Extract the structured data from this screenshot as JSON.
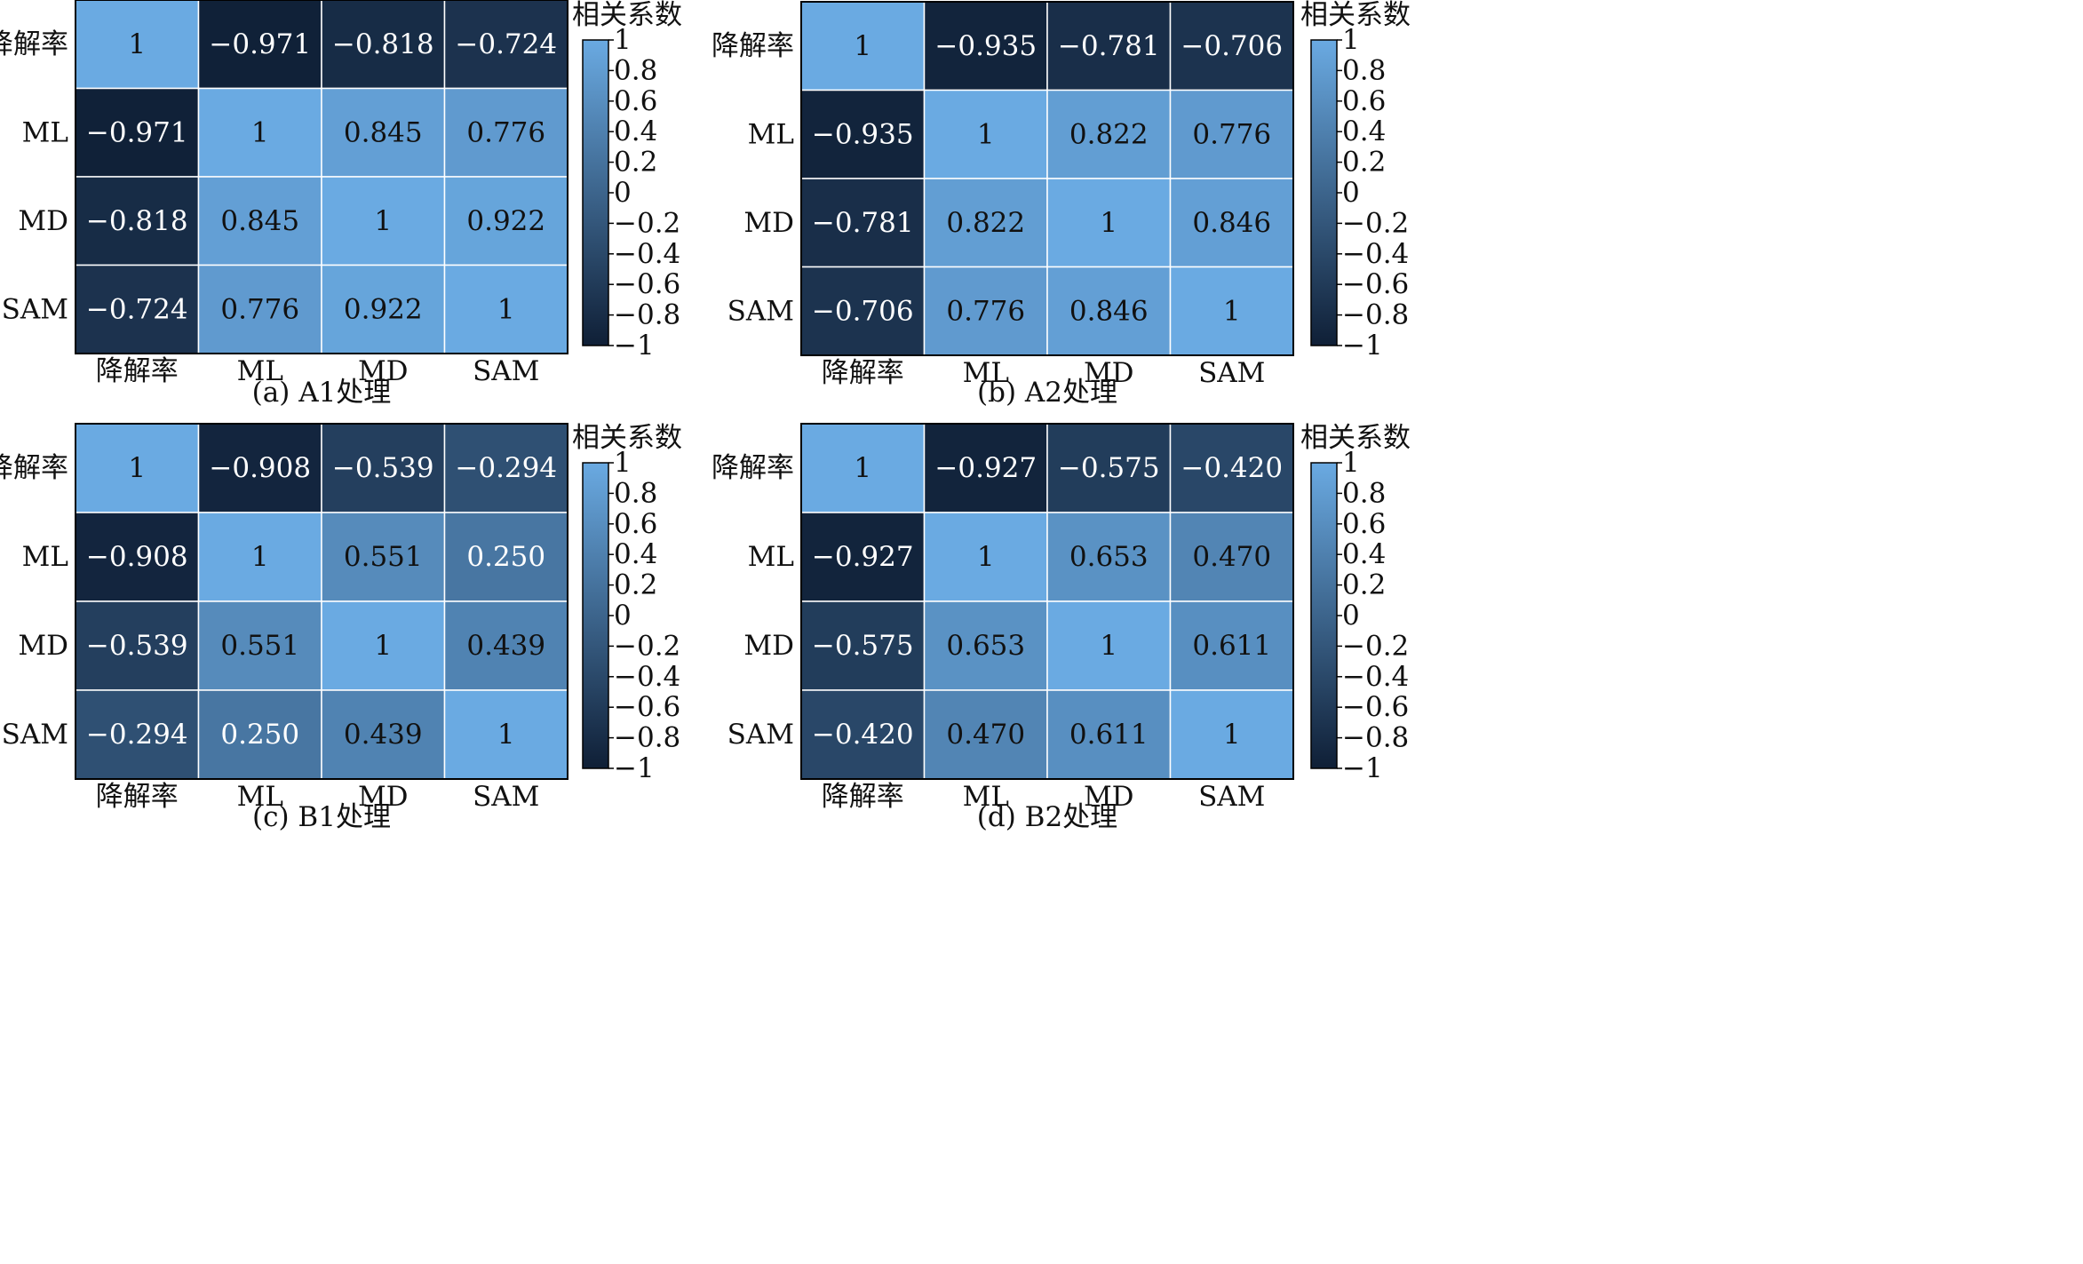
{
  "chart_data": [
    {
      "type": "heatmap",
      "caption": "(a) A1处理",
      "labels": [
        "降解率",
        "ML",
        "MD",
        "SAM"
      ],
      "matrix": [
        [
          1,
          -0.971,
          -0.818,
          -0.724
        ],
        [
          -0.971,
          1,
          0.845,
          0.776
        ],
        [
          -0.818,
          0.845,
          1,
          0.922
        ],
        [
          -0.724,
          0.776,
          0.922,
          1
        ]
      ],
      "cell_text": [
        [
          "1",
          "−0.971",
          "−0.818",
          "−0.724"
        ],
        [
          "−0.971",
          "1",
          "0.845",
          "0.776"
        ],
        [
          "−0.818",
          "0.845",
          "1",
          "0.922"
        ],
        [
          "−0.724",
          "0.776",
          "0.922",
          "1"
        ]
      ],
      "colorbar_title": "相关系数",
      "colorbar_ticks": [
        1,
        0.8,
        0.6,
        0.4,
        0.2,
        0,
        -0.2,
        -0.4,
        -0.6,
        -0.8,
        -1
      ],
      "colorbar_tick_labels": [
        "1",
        "0.8",
        "0.6",
        "0.4",
        "0.2",
        "0",
        "−0.2",
        "−0.4",
        "−0.6",
        "−0.8",
        "−1"
      ],
      "vmin": -1,
      "vmax": 1
    },
    {
      "type": "heatmap",
      "caption": "(b) A2处理",
      "labels": [
        "降解率",
        "ML",
        "MD",
        "SAM"
      ],
      "matrix": [
        [
          1,
          -0.935,
          -0.781,
          -0.706
        ],
        [
          -0.935,
          1,
          0.822,
          0.776
        ],
        [
          -0.781,
          0.822,
          1,
          0.846
        ],
        [
          -0.706,
          0.776,
          0.846,
          1
        ]
      ],
      "cell_text": [
        [
          "1",
          "−0.935",
          "−0.781",
          "−0.706"
        ],
        [
          "−0.935",
          "1",
          "0.822",
          "0.776"
        ],
        [
          "−0.781",
          "0.822",
          "1",
          "0.846"
        ],
        [
          "−0.706",
          "0.776",
          "0.846",
          "1"
        ]
      ],
      "colorbar_title": "相关系数",
      "colorbar_ticks": [
        1,
        0.8,
        0.6,
        0.4,
        0.2,
        0,
        -0.2,
        -0.4,
        -0.6,
        -0.8,
        -1
      ],
      "colorbar_tick_labels": [
        "1",
        "0.8",
        "0.6",
        "0.4",
        "0.2",
        "0",
        "−0.2",
        "−0.4",
        "−0.6",
        "−0.8",
        "−1"
      ],
      "vmin": -1,
      "vmax": 1
    },
    {
      "type": "heatmap",
      "caption": "(c) B1处理",
      "labels": [
        "降解率",
        "ML",
        "MD",
        "SAM"
      ],
      "matrix": [
        [
          1,
          -0.908,
          -0.539,
          -0.294
        ],
        [
          -0.908,
          1,
          0.551,
          0.25
        ],
        [
          -0.539,
          0.551,
          1,
          0.439
        ],
        [
          -0.294,
          0.25,
          0.439,
          1
        ]
      ],
      "cell_text": [
        [
          "1",
          "−0.908",
          "−0.539",
          "−0.294"
        ],
        [
          "−0.908",
          "1",
          "0.551",
          "0.250"
        ],
        [
          "−0.539",
          "0.551",
          "1",
          "0.439"
        ],
        [
          "−0.294",
          "0.250",
          "0.439",
          "1"
        ]
      ],
      "colorbar_title": "相关系数",
      "colorbar_ticks": [
        1,
        0.8,
        0.6,
        0.4,
        0.2,
        0,
        -0.2,
        -0.4,
        -0.6,
        -0.8,
        -1
      ],
      "colorbar_tick_labels": [
        "1",
        "0.8",
        "0.6",
        "0.4",
        "0.2",
        "0",
        "−0.2",
        "−0.4",
        "−0.6",
        "−0.8",
        "−1"
      ],
      "vmin": -1,
      "vmax": 1
    },
    {
      "type": "heatmap",
      "caption": "(d) B2处理",
      "labels": [
        "降解率",
        "ML",
        "MD",
        "SAM"
      ],
      "matrix": [
        [
          1,
          -0.927,
          -0.575,
          -0.42
        ],
        [
          -0.927,
          1,
          0.653,
          0.47
        ],
        [
          -0.575,
          0.653,
          1,
          0.611
        ],
        [
          -0.42,
          0.47,
          0.611,
          1
        ]
      ],
      "cell_text": [
        [
          "1",
          "−0.927",
          "−0.575",
          "−0.420"
        ],
        [
          "−0.927",
          "1",
          "0.653",
          "0.470"
        ],
        [
          "−0.575",
          "0.653",
          "1",
          "0.611"
        ],
        [
          "−0.420",
          "0.470",
          "0.611",
          "1"
        ]
      ],
      "colorbar_title": "相关系数",
      "colorbar_ticks": [
        1,
        0.8,
        0.6,
        0.4,
        0.2,
        0,
        -0.2,
        -0.4,
        -0.6,
        -0.8,
        -1
      ],
      "colorbar_tick_labels": [
        "1",
        "0.8",
        "0.6",
        "0.4",
        "0.2",
        "0",
        "−0.2",
        "−0.4",
        "−0.6",
        "−0.8",
        "−1"
      ],
      "vmin": -1,
      "vmax": 1
    }
  ],
  "colors": {
    "low": "#0f1f36",
    "high": "#6aaae2",
    "grid_line": "#ffffff",
    "axis": "#000000",
    "text_light": "#ffffff",
    "text_dark": "#111111"
  }
}
